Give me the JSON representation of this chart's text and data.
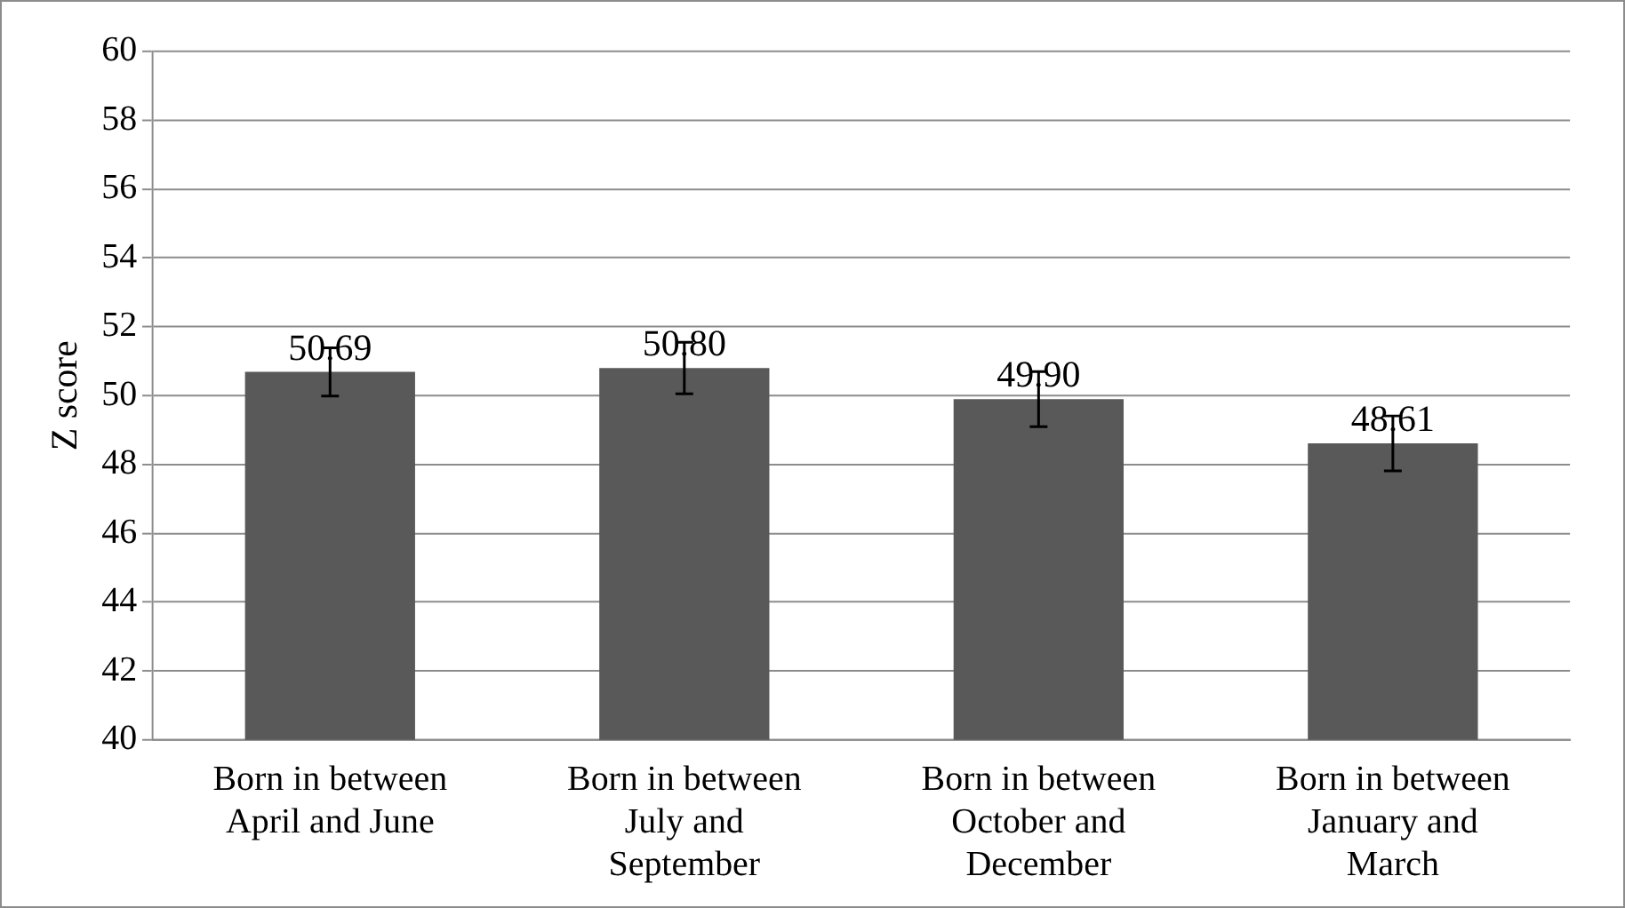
{
  "chart_data": {
    "type": "bar",
    "ylabel": "Z score",
    "categories": [
      "Born in between April and June",
      "Born in between July and September",
      "Born in between October and December",
      "Born in between January and March"
    ],
    "values": [
      50.69,
      50.8,
      49.9,
      48.61
    ],
    "errors": [
      0.7,
      0.75,
      0.8,
      0.8
    ],
    "value_labels": [
      "50.69",
      "50.80",
      "49.90",
      "48.61"
    ],
    "color": "#595959",
    "ylim": [
      40,
      60
    ],
    "yticks": [
      40,
      42,
      44,
      46,
      48,
      50,
      52,
      54,
      56,
      58,
      60
    ],
    "grid": "y",
    "legend": false
  }
}
